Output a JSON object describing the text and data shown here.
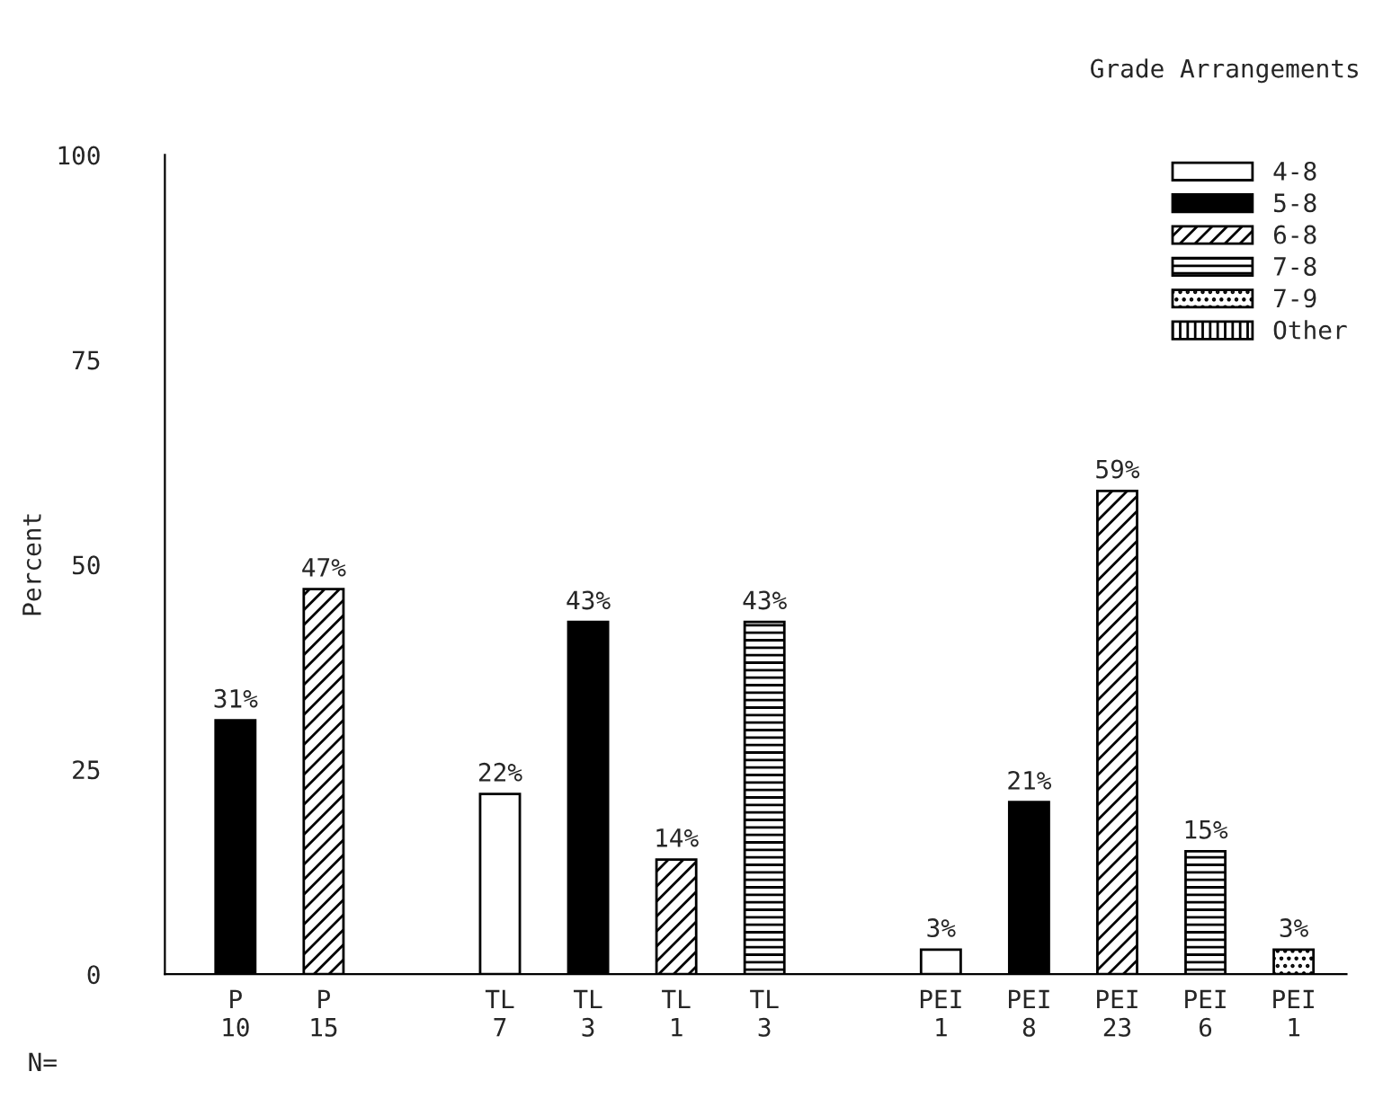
{
  "chart_data": {
    "type": "bar",
    "ylabel": "Percent",
    "legend_title": "Grade Arrangements",
    "legend": "top right",
    "categories": [
      "P\n10",
      "P\n15",
      null,
      "TL\n7",
      "TL\n3",
      "TL\n1",
      "TL\n3",
      null,
      "PEI\n1",
      "PEI\n8",
      "PEI\n23",
      "PEI\n6",
      "PEI\n1"
    ],
    "ylim": [
      0,
      100
    ],
    "yticks": [
      0,
      25,
      50,
      75,
      100
    ],
    "grid": false,
    "annotations": [
      "N="
    ],
    "series": [
      {
        "name": "4-8",
        "color": "#ffffff",
        "values": [
          null,
          null,
          null,
          22,
          null,
          null,
          null,
          null,
          3,
          null,
          null,
          null,
          null
        ],
        "value_labels": [
          null,
          null,
          null,
          "22%",
          null,
          null,
          null,
          null,
          "3%",
          null,
          null,
          null,
          null
        ]
      },
      {
        "name": "5-8",
        "color": "#000000",
        "values": [
          31,
          null,
          null,
          null,
          43,
          null,
          null,
          null,
          null,
          21,
          null,
          null,
          null
        ],
        "value_labels": [
          "31%",
          null,
          null,
          null,
          "43%",
          null,
          null,
          null,
          null,
          "21%",
          null,
          null,
          null
        ]
      },
      {
        "name": "6-8",
        "color": "#000000",
        "values": [
          null,
          47,
          null,
          null,
          null,
          14,
          null,
          null,
          null,
          null,
          59,
          null,
          null
        ],
        "value_labels": [
          null,
          "47%",
          null,
          null,
          null,
          "14%",
          null,
          null,
          null,
          null,
          "59%",
          null,
          null
        ]
      },
      {
        "name": "7-8",
        "color": "#000000",
        "values": [
          null,
          null,
          null,
          null,
          null,
          null,
          43,
          null,
          null,
          null,
          null,
          15,
          null
        ],
        "value_labels": [
          null,
          null,
          null,
          null,
          null,
          null,
          "43%",
          null,
          null,
          null,
          null,
          "15%",
          null
        ]
      },
      {
        "name": "7-9",
        "color": "#000000",
        "values": [
          null,
          null,
          null,
          null,
          null,
          null,
          null,
          null,
          null,
          null,
          null,
          null,
          3
        ],
        "value_labels": [
          null,
          null,
          null,
          null,
          null,
          null,
          null,
          null,
          null,
          null,
          null,
          null,
          "3%"
        ]
      },
      {
        "name": "Other",
        "color": "#000000",
        "values": [
          null,
          null,
          null,
          null,
          null,
          null,
          null,
          null,
          null,
          null,
          null,
          null,
          null
        ],
        "value_labels": [
          null,
          null,
          null,
          null,
          null,
          null,
          null,
          null,
          null,
          null,
          null,
          null,
          null
        ]
      }
    ]
  }
}
